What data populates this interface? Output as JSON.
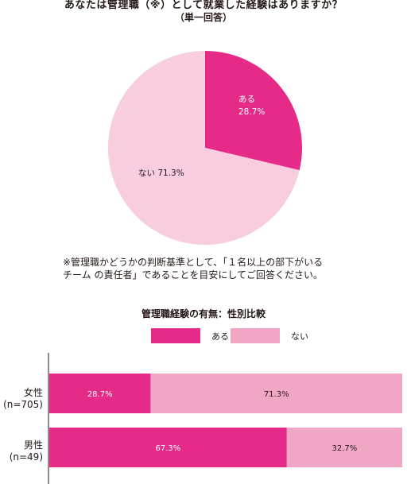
{
  "pie_chart": {
    "title_line1": "あなたは管理職（※）として就業した経験はありますか？",
    "title_line2": "（単一回答）",
    "note_line1": "※管理職かどうかの判断基準として、「１名以上の部下がいる",
    "note_line2": "チーム の責任者」であることを目安にしてご回答ください。"
  },
  "bar_chart": {
    "title": "管理職経験の有無：性別比較",
    "legend": [
      {
        "label": "ある",
        "color": "#e62a87"
      },
      {
        "label": "ない",
        "color": "#f2a6c6"
      }
    ],
    "rows": [
      {
        "label_line1": "女性",
        "label_line2": "(n=705)"
      },
      {
        "label_line1": "男性",
        "label_line2": "(n=49)"
      }
    ]
  },
  "chart_data": [
    {
      "type": "pie",
      "slices": [
        {
          "label": "ある",
          "value": 28.7,
          "display": "28.7%",
          "color": "#e62a87"
        },
        {
          "label": "ない",
          "value": 71.3,
          "display": "71.3%",
          "color": "#f8cde0"
        }
      ]
    },
    {
      "type": "bar",
      "orientation": "horizontal-stacked",
      "categories": [
        "女性 (n=705)",
        "男性 (n=49)"
      ],
      "series": [
        {
          "name": "ある",
          "values": [
            28.7,
            67.3
          ],
          "color": "#e62a87"
        },
        {
          "name": "ない",
          "values": [
            71.3,
            32.7
          ],
          "color": "#f2a6c6"
        }
      ],
      "value_labels": [
        [
          "28.7%",
          "71.3%"
        ],
        [
          "67.3%",
          "32.7%"
        ]
      ],
      "xlim": [
        0,
        100
      ]
    }
  ]
}
